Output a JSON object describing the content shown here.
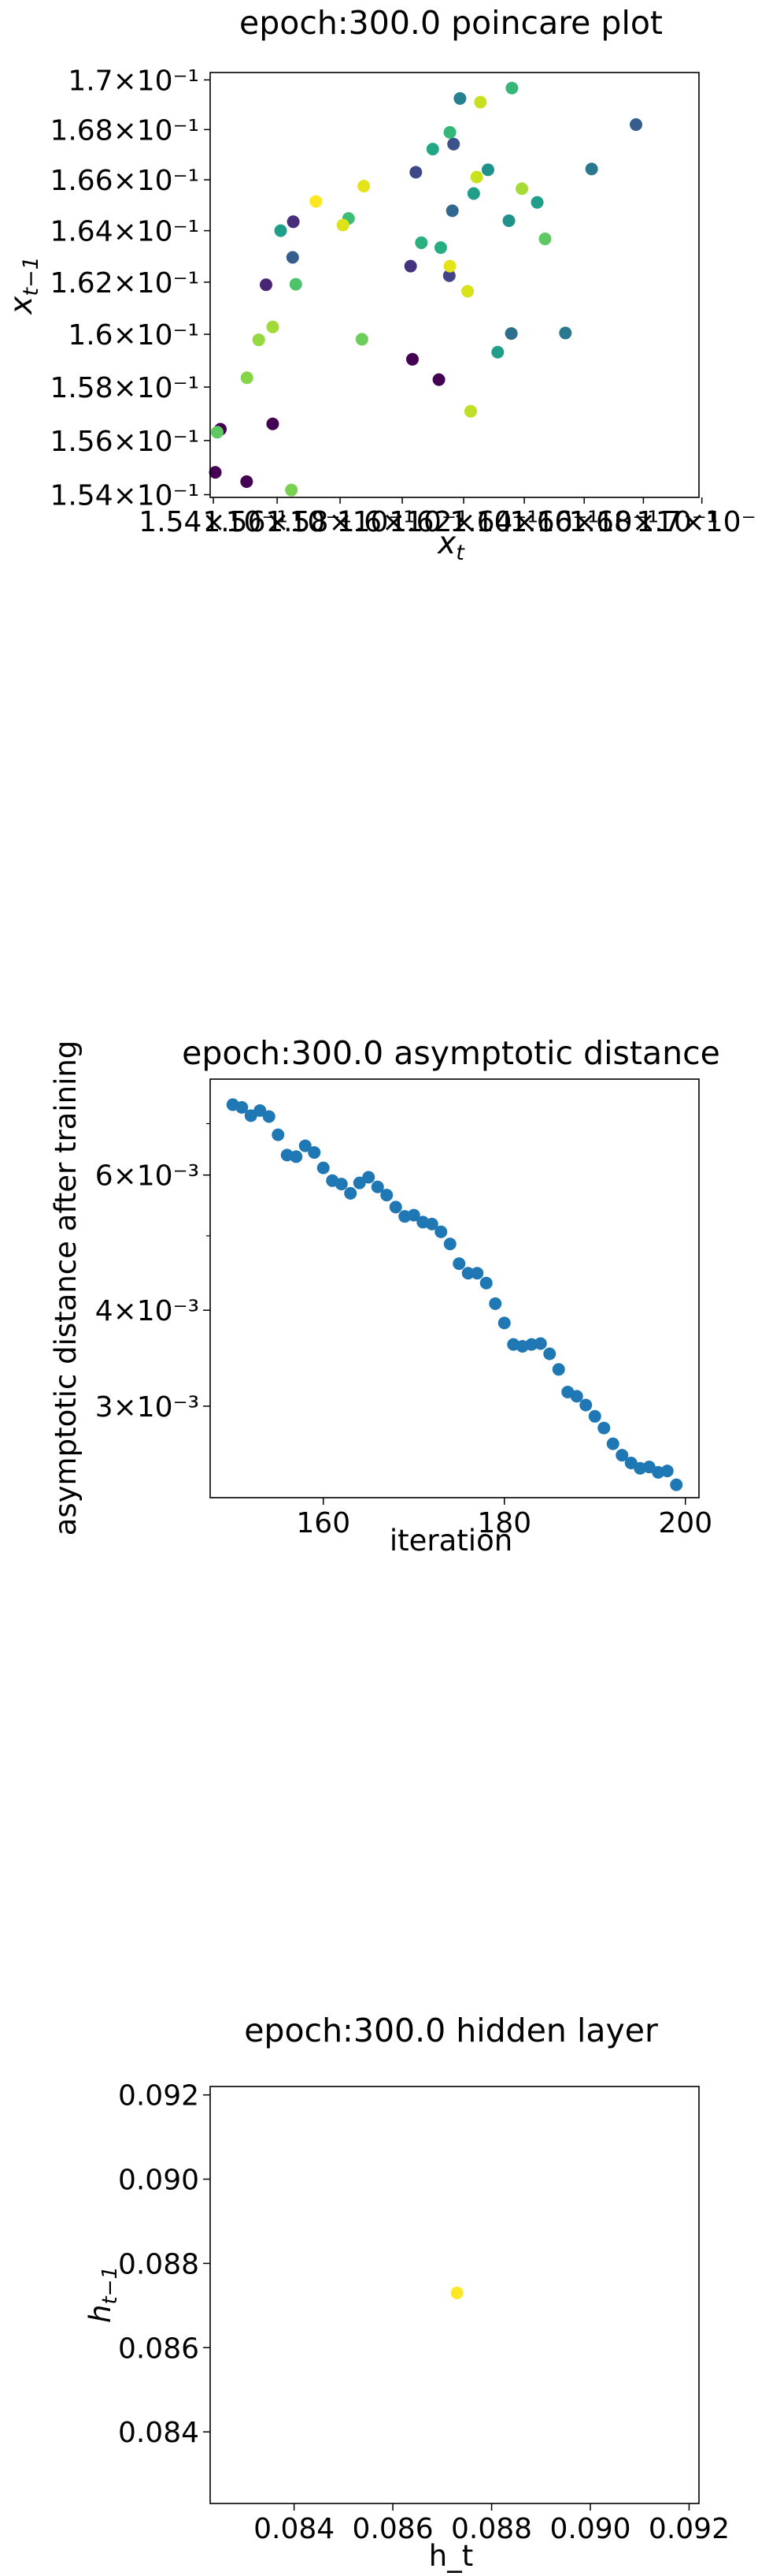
{
  "chart_data": [
    {
      "type": "scatter",
      "title": "epoch:300.0 poincare plot",
      "xlabel": "x_t",
      "ylabel": "x_{t-1}",
      "yscale": "log",
      "xlim": [
        0.1539,
        0.1699
      ],
      "ylim": [
        0.1539,
        0.1703
      ],
      "xtick_labels": [
        {
          "value": 0.154,
          "label": "1.54×10⁻¹"
        },
        {
          "value": 0.156,
          "label": "1.56×10⁻¹"
        },
        {
          "value": 0.158,
          "label": "1.58×10⁻¹"
        },
        {
          "value": 0.16,
          "label": "1.6×10⁻¹"
        },
        {
          "value": 0.162,
          "label": "1.62×10⁻¹"
        },
        {
          "value": 0.164,
          "label": "1.64×10⁻¹"
        },
        {
          "value": 0.166,
          "label": "1.66×10⁻¹"
        },
        {
          "value": 0.168,
          "label": "1.68×10⁻¹"
        },
        {
          "value": 0.17,
          "label": "1.7×10⁻¹"
        }
      ],
      "ytick_labels": [
        {
          "value": 0.154,
          "label": "1.54×10⁻¹"
        },
        {
          "value": 0.156,
          "label": "1.56×10⁻¹"
        },
        {
          "value": 0.158,
          "label": "1.58×10⁻¹"
        },
        {
          "value": 0.16,
          "label": "1.6×10⁻¹"
        },
        {
          "value": 0.162,
          "label": "1.62×10⁻¹"
        },
        {
          "value": 0.164,
          "label": "1.64×10⁻¹"
        },
        {
          "value": 0.166,
          "label": "1.66×10⁻¹"
        },
        {
          "value": 0.168,
          "label": "1.68×10⁻¹"
        },
        {
          "value": 0.17,
          "label": "1.7×10⁻¹"
        }
      ],
      "grid": false,
      "points": [
        {
          "x": 0.15406,
          "y": 0.15482,
          "color": "#440154"
        },
        {
          "x": 0.15422,
          "y": 0.15642,
          "color": "#440154"
        },
        {
          "x": 0.15504,
          "y": 0.15448,
          "color": "#440154"
        },
        {
          "x": 0.15586,
          "y": 0.15662,
          "color": "#440154"
        },
        {
          "x": 0.16033,
          "y": 0.15905,
          "color": "#440154"
        },
        {
          "x": 0.16119,
          "y": 0.15828,
          "color": "#440154"
        },
        {
          "x": 0.15565,
          "y": 0.1619,
          "color": "#482475"
        },
        {
          "x": 0.15651,
          "y": 0.16435,
          "color": "#472d7b"
        },
        {
          "x": 0.16027,
          "y": 0.16262,
          "color": "#46337f"
        },
        {
          "x": 0.16153,
          "y": 0.16225,
          "color": "#414487"
        },
        {
          "x": 0.16167,
          "y": 0.16742,
          "color": "#3b528b"
        },
        {
          "x": 0.16044,
          "y": 0.1663,
          "color": "#3e4989"
        },
        {
          "x": 0.15649,
          "y": 0.16296,
          "color": "#355e8d"
        },
        {
          "x": 0.16163,
          "y": 0.16478,
          "color": "#31688e"
        },
        {
          "x": 0.16357,
          "y": 0.16003,
          "color": "#2e6f8e"
        },
        {
          "x": 0.16537,
          "y": 0.16005,
          "color": "#2a788e"
        },
        {
          "x": 0.16625,
          "y": 0.16643,
          "color": "#2a788e"
        },
        {
          "x": 0.16775,
          "y": 0.1682,
          "color": "#355e8d"
        },
        {
          "x": 0.16188,
          "y": 0.16925,
          "color": "#26828e"
        },
        {
          "x": 0.1628,
          "y": 0.1664,
          "color": "#21918c"
        },
        {
          "x": 0.16349,
          "y": 0.16439,
          "color": "#21918c"
        },
        {
          "x": 0.16443,
          "y": 0.16511,
          "color": "#1f9e89"
        },
        {
          "x": 0.16312,
          "y": 0.15932,
          "color": "#1f9e89"
        },
        {
          "x": 0.15611,
          "y": 0.164,
          "color": "#1f9e89"
        },
        {
          "x": 0.16233,
          "y": 0.16546,
          "color": "#1f9e89"
        },
        {
          "x": 0.16099,
          "y": 0.16722,
          "color": "#22a884"
        },
        {
          "x": 0.16062,
          "y": 0.16353,
          "color": "#2ab07f"
        },
        {
          "x": 0.16125,
          "y": 0.16334,
          "color": "#27ad81"
        },
        {
          "x": 0.16155,
          "y": 0.16789,
          "color": "#35b779"
        },
        {
          "x": 0.16359,
          "y": 0.16967,
          "color": "#35b779"
        },
        {
          "x": 0.15827,
          "y": 0.16448,
          "color": "#3dbc74"
        },
        {
          "x": 0.15659,
          "y": 0.16192,
          "color": "#4ec36b"
        },
        {
          "x": 0.15412,
          "y": 0.15631,
          "color": "#5ec962"
        },
        {
          "x": 0.1587,
          "y": 0.15981,
          "color": "#6ccd5a"
        },
        {
          "x": 0.15645,
          "y": 0.15417,
          "color": "#7ad151"
        },
        {
          "x": 0.15505,
          "y": 0.15835,
          "color": "#86d549"
        },
        {
          "x": 0.15542,
          "y": 0.15979,
          "color": "#95d840"
        },
        {
          "x": 0.15586,
          "y": 0.16028,
          "color": "#a2da37"
        },
        {
          "x": 0.16469,
          "y": 0.16368,
          "color": "#5ec962"
        },
        {
          "x": 0.16392,
          "y": 0.16565,
          "color": "#a5db36"
        },
        {
          "x": 0.16255,
          "y": 0.1691,
          "color": "#c8e020"
        },
        {
          "x": 0.16243,
          "y": 0.16611,
          "color": "#cae11f"
        },
        {
          "x": 0.16223,
          "y": 0.15709,
          "color": "#bddf26"
        },
        {
          "x": 0.16213,
          "y": 0.16165,
          "color": "#d8e219"
        },
        {
          "x": 0.16155,
          "y": 0.16262,
          "color": "#e5e419"
        },
        {
          "x": 0.15809,
          "y": 0.16422,
          "color": "#dde318"
        },
        {
          "x": 0.15876,
          "y": 0.16575,
          "color": "#e5e419"
        },
        {
          "x": 0.15723,
          "y": 0.16515,
          "color": "#fde725"
        }
      ]
    },
    {
      "type": "scatter",
      "title": "epoch:300.0 asymptotic distance",
      "xlabel": "iteration",
      "ylabel": "asymptotic distance after training",
      "yscale": "log",
      "xlim": [
        147.5,
        201.5
      ],
      "ylim": [
        0.00228,
        0.008
      ],
      "xticks": [
        160,
        180,
        200
      ],
      "ytick_labels": [
        {
          "value": 0.003,
          "label": "3×10⁻³"
        },
        {
          "value": 0.004,
          "label": "4×10⁻³"
        },
        {
          "value": 0.006,
          "label": "6×10⁻³"
        }
      ],
      "grid": false,
      "color": "#1f77b4",
      "points": [
        {
          "x": 150,
          "y": 0.00741
        },
        {
          "x": 151,
          "y": 0.00735
        },
        {
          "x": 152,
          "y": 0.00717
        },
        {
          "x": 153,
          "y": 0.00728
        },
        {
          "x": 154,
          "y": 0.00715
        },
        {
          "x": 155,
          "y": 0.00677
        },
        {
          "x": 156,
          "y": 0.00637
        },
        {
          "x": 157,
          "y": 0.00634
        },
        {
          "x": 158,
          "y": 0.00655
        },
        {
          "x": 159,
          "y": 0.00642
        },
        {
          "x": 160,
          "y": 0.00613
        },
        {
          "x": 161,
          "y": 0.0059
        },
        {
          "x": 162,
          "y": 0.00584
        },
        {
          "x": 163,
          "y": 0.00568
        },
        {
          "x": 164,
          "y": 0.00586
        },
        {
          "x": 165,
          "y": 0.00596
        },
        {
          "x": 166,
          "y": 0.00579
        },
        {
          "x": 167,
          "y": 0.00565
        },
        {
          "x": 168,
          "y": 0.00545
        },
        {
          "x": 169,
          "y": 0.0053
        },
        {
          "x": 170,
          "y": 0.00532
        },
        {
          "x": 171,
          "y": 0.00521
        },
        {
          "x": 172,
          "y": 0.00518
        },
        {
          "x": 173,
          "y": 0.00506
        },
        {
          "x": 174,
          "y": 0.00488
        },
        {
          "x": 175,
          "y": 0.0046
        },
        {
          "x": 176,
          "y": 0.00447
        },
        {
          "x": 177,
          "y": 0.00447
        },
        {
          "x": 178,
          "y": 0.00434
        },
        {
          "x": 179,
          "y": 0.00408
        },
        {
          "x": 180,
          "y": 0.00385
        },
        {
          "x": 181,
          "y": 0.00361
        },
        {
          "x": 182,
          "y": 0.00359
        },
        {
          "x": 183,
          "y": 0.00361
        },
        {
          "x": 184,
          "y": 0.00362
        },
        {
          "x": 185,
          "y": 0.00351
        },
        {
          "x": 186,
          "y": 0.00335
        },
        {
          "x": 187,
          "y": 0.00313
        },
        {
          "x": 188,
          "y": 0.00309
        },
        {
          "x": 189,
          "y": 0.00301
        },
        {
          "x": 190,
          "y": 0.00291
        },
        {
          "x": 191,
          "y": 0.00281
        },
        {
          "x": 192,
          "y": 0.00268
        },
        {
          "x": 193,
          "y": 0.00259
        },
        {
          "x": 194,
          "y": 0.00253
        },
        {
          "x": 195,
          "y": 0.00249
        },
        {
          "x": 196,
          "y": 0.0025
        },
        {
          "x": 197,
          "y": 0.00246
        },
        {
          "x": 198,
          "y": 0.00247
        },
        {
          "x": 199,
          "y": 0.00237
        }
      ]
    },
    {
      "type": "scatter",
      "title": "epoch:300.0 hidden layer",
      "xlabel": "h_t",
      "ylabel": "h_{t-1}",
      "xlim": [
        0.0823,
        0.0922
      ],
      "ylim": [
        0.0823,
        0.0922
      ],
      "xticks": [
        0.084,
        0.086,
        0.088,
        0.09,
        0.092
      ],
      "yticks": [
        0.084,
        0.086,
        0.088,
        0.09,
        0.092
      ],
      "grid": false,
      "points": [
        {
          "x": 0.0873,
          "y": 0.0873,
          "color": "#fde725"
        }
      ]
    }
  ]
}
